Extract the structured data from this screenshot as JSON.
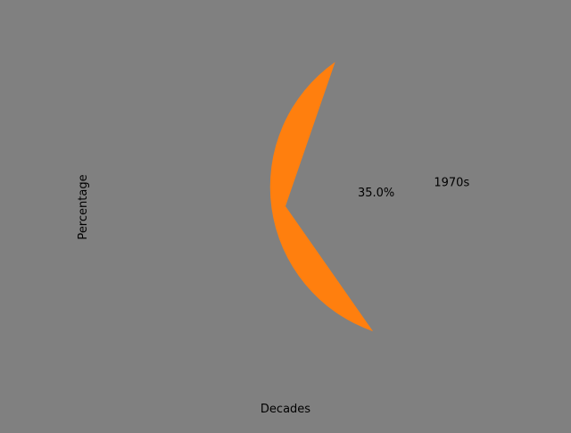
{
  "chart_data": {
    "type": "pie",
    "title": "",
    "xlabel": "Decades",
    "ylabel": "Percentage",
    "slices": [
      {
        "label": "1970s",
        "value": 35.0,
        "pct_label": "35.0%",
        "color": "#ff7f0e"
      }
    ],
    "background_color": "#808080",
    "grid": false,
    "legend": "none"
  }
}
